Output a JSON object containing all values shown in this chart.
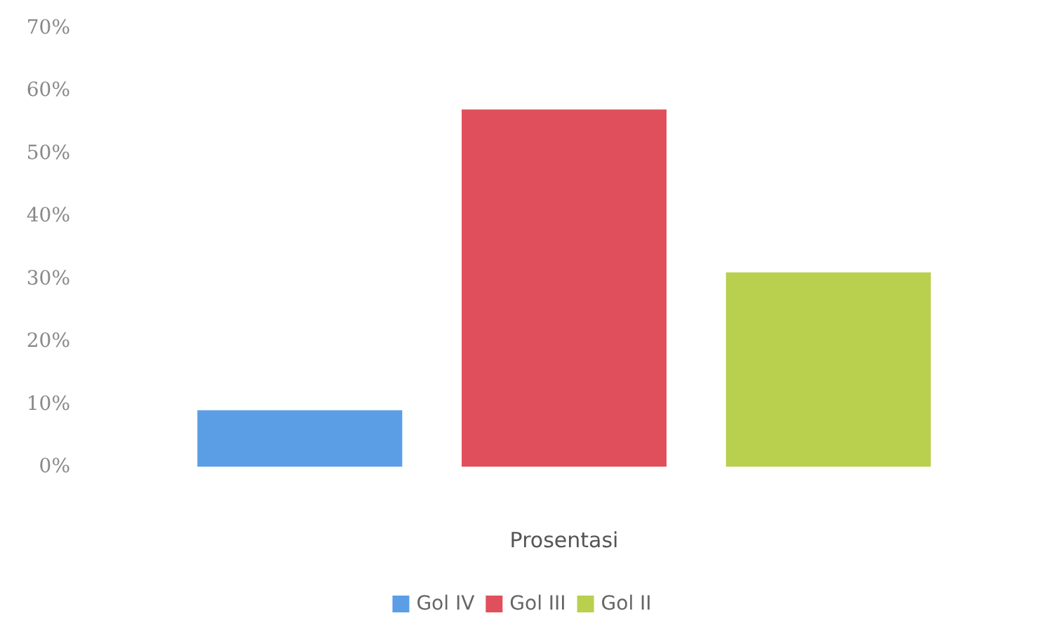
{
  "chart_data": {
    "type": "bar",
    "categories": [
      null
    ],
    "xlabel": "Prosentasi",
    "series": [
      {
        "name": "Gol IV",
        "color": "#5b9ee6",
        "values": [
          9
        ]
      },
      {
        "name": "Gol III",
        "color": "#e0505c",
        "values": [
          57
        ]
      },
      {
        "name": "Gol II",
        "color": "#b9cf4e",
        "values": [
          31
        ]
      }
    ],
    "ylim": [
      0,
      70
    ],
    "yticks": [
      {
        "value": 0,
        "label": "0%"
      },
      {
        "value": 10,
        "label": "10%"
      },
      {
        "value": 20,
        "label": "20%"
      },
      {
        "value": 30,
        "label": "30%"
      },
      {
        "value": 40,
        "label": "40%"
      },
      {
        "value": 50,
        "label": "50%"
      },
      {
        "value": 60,
        "label": "60%"
      },
      {
        "value": 70,
        "label": "70%"
      }
    ],
    "grid": false,
    "legend": "bottom"
  }
}
